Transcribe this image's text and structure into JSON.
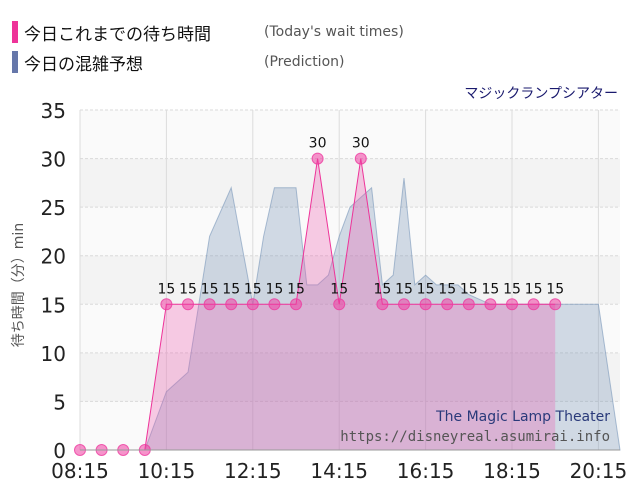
{
  "legend": {
    "today_jp": "今日これまでの待ち時間",
    "today_en": "(Today's wait times)",
    "prediction_jp": "今日の混雑予想",
    "prediction_en": "(Prediction)"
  },
  "colors": {
    "today": "#ee3399",
    "prediction": "#6677aa",
    "title": "#1a1a6e"
  },
  "chart_data": {
    "type": "area",
    "title": "マジックランプシアター",
    "watermark_title": "The Magic Lamp Theater",
    "watermark_url": "https://disneyreal.asumirai.info",
    "ylabel": "待ち時間（分）min",
    "ylim": [
      0,
      35
    ],
    "yticks": [
      "0",
      "5",
      "10",
      "15",
      "20",
      "25",
      "30",
      "35"
    ],
    "xlim": [
      "08:15",
      "20:45"
    ],
    "xticks": [
      "08:15",
      "10:15",
      "12:15",
      "14:15",
      "16:15",
      "18:15",
      "20:15"
    ],
    "grid": true,
    "series": [
      {
        "name": "今日これまでの待ち時間",
        "x": [
          "08:15",
          "08:45",
          "09:15",
          "09:45",
          "10:15",
          "10:45",
          "11:15",
          "11:45",
          "12:15",
          "12:45",
          "13:15",
          "13:45",
          "14:15",
          "14:45",
          "15:15",
          "15:45",
          "16:15",
          "16:45",
          "17:15",
          "17:45",
          "18:15",
          "18:45",
          "19:15"
        ],
        "values": [
          0,
          0,
          0,
          0,
          15,
          15,
          15,
          15,
          15,
          15,
          15,
          30,
          15,
          30,
          15,
          15,
          15,
          15,
          15,
          15,
          15,
          15,
          15
        ],
        "labels": [
          "",
          "",
          "",
          "",
          "15",
          "15",
          "15",
          "15",
          "15",
          "15",
          "15",
          "30",
          "15",
          "30",
          "15",
          "15",
          "15",
          "15",
          "15",
          "15",
          "15",
          "15",
          "15"
        ]
      },
      {
        "name": "今日の混雑予想",
        "x": [
          "08:15",
          "08:45",
          "09:15",
          "09:45",
          "10:15",
          "10:45",
          "11:15",
          "11:45",
          "12:15",
          "12:30",
          "12:45",
          "13:00",
          "13:15",
          "13:30",
          "13:45",
          "14:00",
          "14:15",
          "14:30",
          "14:45",
          "15:00",
          "15:15",
          "15:30",
          "15:45",
          "16:00",
          "16:15",
          "16:30",
          "16:45",
          "17:00",
          "17:15",
          "17:45",
          "18:15",
          "18:45",
          "19:15",
          "19:45",
          "20:15",
          "20:45"
        ],
        "values": [
          0,
          0,
          0,
          0,
          6,
          8,
          22,
          27,
          15,
          22,
          27,
          27,
          27,
          17,
          17,
          18,
          22,
          25,
          26,
          27,
          17,
          18,
          28,
          17,
          18,
          17,
          17,
          17,
          16,
          15,
          15,
          15,
          15,
          15,
          15,
          0
        ]
      }
    ]
  }
}
